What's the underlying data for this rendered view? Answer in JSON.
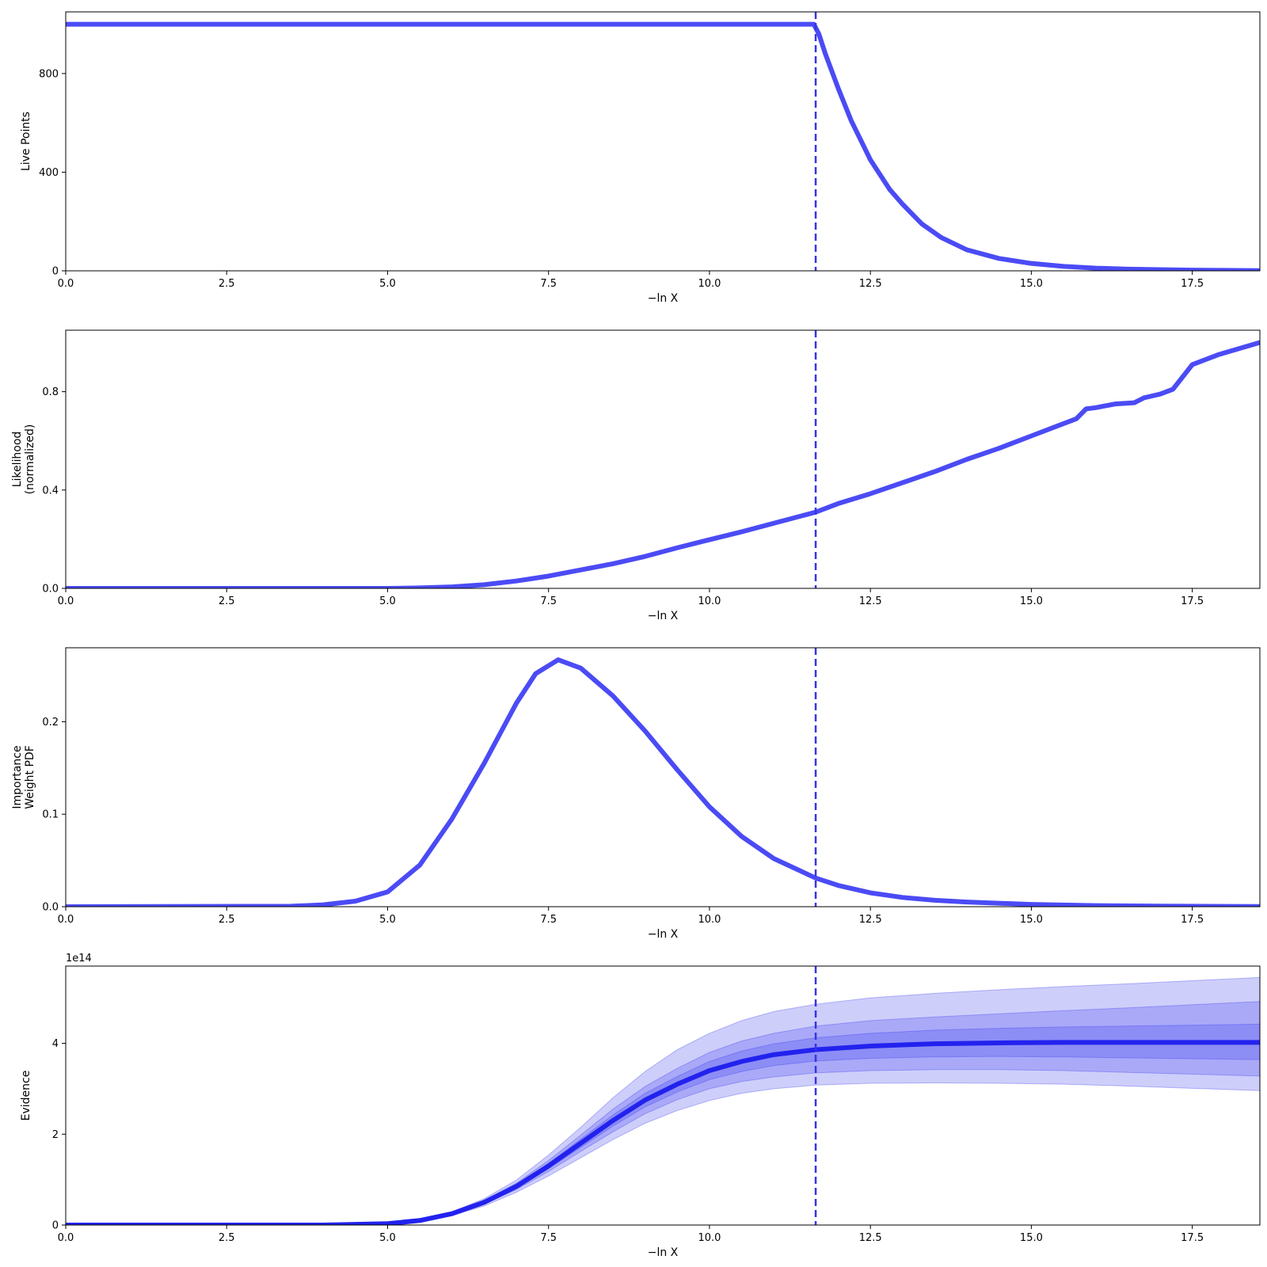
{
  "style": {
    "line_color": "#4b4bf5",
    "evidence_line_color": "#2222ee",
    "band_color": "#3c3cf0",
    "vline_color": "#3434e8"
  },
  "shared": {
    "xlabel": "−ln X",
    "xlim": [
      0,
      18.55
    ],
    "xticks": [
      0.0,
      2.5,
      5.0,
      7.5,
      10.0,
      12.5,
      15.0,
      17.5
    ],
    "xtick_labels": [
      "0.0",
      "2.5",
      "5.0",
      "7.5",
      "10.0",
      "12.5",
      "15.0",
      "17.5"
    ],
    "vline_x": 11.65
  },
  "chart_data": [
    {
      "type": "line",
      "ylabel_lines": [
        "Live Points"
      ],
      "ylim": [
        0,
        1050
      ],
      "yticks": [
        0,
        400,
        800
      ],
      "ytick_labels": [
        "0",
        "400",
        "800"
      ],
      "series": [
        {
          "x": [
            0.0,
            11.62,
            11.7,
            11.8,
            12.0,
            12.2,
            12.5,
            12.8,
            13.0,
            13.3,
            13.6,
            14.0,
            14.5,
            15.0,
            15.5,
            16.0,
            16.5,
            17.0,
            17.5,
            18.0,
            18.55
          ],
          "y": [
            1000,
            1000,
            960,
            880,
            740,
            610,
            450,
            330,
            270,
            190,
            135,
            85,
            50,
            30,
            18,
            11,
            7,
            5,
            3,
            2,
            1
          ]
        }
      ]
    },
    {
      "type": "line",
      "ylabel_lines": [
        "Likelihood",
        "(normalized)"
      ],
      "ylim": [
        0,
        1.05
      ],
      "yticks": [
        0.0,
        0.4,
        0.8
      ],
      "ytick_labels": [
        "0.0",
        "0.4",
        "0.8"
      ],
      "series": [
        {
          "x": [
            0.0,
            5.0,
            5.5,
            6.0,
            6.5,
            7.0,
            7.5,
            8.0,
            8.5,
            9.0,
            9.5,
            10.0,
            10.5,
            11.0,
            11.65,
            12.0,
            12.5,
            13.0,
            13.5,
            14.0,
            14.5,
            15.0,
            15.4,
            15.7,
            15.85,
            16.0,
            16.3,
            16.6,
            16.75,
            17.0,
            17.2,
            17.5,
            17.9,
            18.55
          ],
          "y": [
            0.0,
            0.0,
            0.002,
            0.006,
            0.015,
            0.03,
            0.05,
            0.075,
            0.1,
            0.13,
            0.165,
            0.198,
            0.23,
            0.265,
            0.31,
            0.345,
            0.385,
            0.43,
            0.475,
            0.525,
            0.57,
            0.62,
            0.66,
            0.69,
            0.73,
            0.735,
            0.75,
            0.755,
            0.775,
            0.79,
            0.81,
            0.91,
            0.95,
            1.0
          ]
        }
      ]
    },
    {
      "type": "line",
      "ylabel_lines": [
        "Importance",
        "Weight PDF"
      ],
      "ylim": [
        0,
        0.28
      ],
      "yticks": [
        0.0,
        0.1,
        0.2
      ],
      "ytick_labels": [
        "0.0",
        "0.1",
        "0.2"
      ],
      "series": [
        {
          "x": [
            0.0,
            3.5,
            4.0,
            4.5,
            5.0,
            5.5,
            6.0,
            6.5,
            7.0,
            7.3,
            7.65,
            8.0,
            8.5,
            9.0,
            9.5,
            10.0,
            10.5,
            11.0,
            11.65,
            12.0,
            12.5,
            13.0,
            13.5,
            14.0,
            15.0,
            16.0,
            17.0,
            18.55
          ],
          "y": [
            0.0,
            0.0005,
            0.002,
            0.006,
            0.016,
            0.045,
            0.095,
            0.155,
            0.22,
            0.252,
            0.267,
            0.258,
            0.228,
            0.19,
            0.148,
            0.108,
            0.076,
            0.052,
            0.031,
            0.023,
            0.015,
            0.01,
            0.007,
            0.005,
            0.0025,
            0.0012,
            0.0006,
            0.0002
          ]
        }
      ]
    },
    {
      "type": "area",
      "ylabel_lines": [
        "Evidence"
      ],
      "offset_text": "1e14",
      "ylim": [
        0,
        5.7
      ],
      "yticks": [
        0,
        2,
        4
      ],
      "ytick_labels": [
        "0",
        "2",
        "4"
      ],
      "x": [
        0.0,
        4.0,
        5.0,
        5.5,
        6.0,
        6.5,
        7.0,
        7.5,
        8.0,
        8.5,
        9.0,
        9.5,
        10.0,
        10.5,
        11.0,
        11.65,
        12.5,
        13.5,
        14.5,
        15.5,
        16.5,
        17.5,
        18.55
      ],
      "series": [
        {
          "name": "",
          "y": [
            0.0,
            0.0,
            0.03,
            0.1,
            0.25,
            0.5,
            0.85,
            1.3,
            1.8,
            2.3,
            2.75,
            3.1,
            3.4,
            3.6,
            3.75,
            3.86,
            3.94,
            3.99,
            4.01,
            4.02,
            4.02,
            4.02,
            4.02
          ]
        },
        {
          "name": "",
          "y_low": [
            0.0,
            0.0,
            0.03,
            0.09,
            0.23,
            0.46,
            0.78,
            1.18,
            1.62,
            2.05,
            2.45,
            2.76,
            3.0,
            3.16,
            3.26,
            3.35,
            3.4,
            3.42,
            3.42,
            3.4,
            3.36,
            3.32,
            3.28
          ],
          "y_high": [
            0.0,
            0.0,
            0.03,
            0.11,
            0.27,
            0.54,
            0.92,
            1.42,
            1.98,
            2.55,
            3.05,
            3.45,
            3.8,
            4.05,
            4.22,
            4.38,
            4.5,
            4.58,
            4.65,
            4.72,
            4.78,
            4.85,
            4.92
          ]
        },
        {
          "name": "",
          "y_low": [
            0.0,
            0.0,
            0.03,
            0.09,
            0.21,
            0.42,
            0.72,
            1.08,
            1.48,
            1.88,
            2.24,
            2.52,
            2.74,
            2.9,
            3.0,
            3.08,
            3.12,
            3.13,
            3.12,
            3.1,
            3.06,
            3.01,
            2.96
          ],
          "y_high": [
            0.0,
            0.0,
            0.03,
            0.12,
            0.29,
            0.58,
            0.99,
            1.54,
            2.15,
            2.8,
            3.38,
            3.86,
            4.22,
            4.5,
            4.7,
            4.86,
            5.0,
            5.1,
            5.18,
            5.25,
            5.31,
            5.38,
            5.45
          ]
        },
        {
          "name": "",
          "y_low": [
            0.0,
            0.0,
            0.03,
            0.09,
            0.24,
            0.48,
            0.82,
            1.24,
            1.71,
            2.18,
            2.6,
            2.93,
            3.2,
            3.38,
            3.51,
            3.61,
            3.67,
            3.7,
            3.71,
            3.7,
            3.68,
            3.66,
            3.64
          ],
          "y_high": [
            0.0,
            0.0,
            0.03,
            0.11,
            0.26,
            0.52,
            0.88,
            1.36,
            1.89,
            2.42,
            2.9,
            3.27,
            3.6,
            3.83,
            3.99,
            4.12,
            4.22,
            4.29,
            4.33,
            4.36,
            4.38,
            4.4,
            4.42
          ]
        }
      ]
    }
  ]
}
